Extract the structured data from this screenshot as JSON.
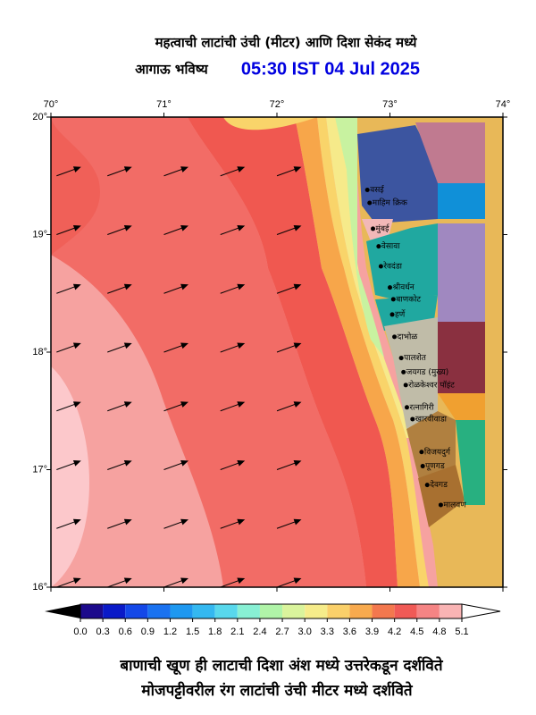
{
  "header": {
    "title": "महत्वाची लाटांची उंची (मीटर) आणि दिशा सेकंद मध्ये",
    "forecast_label": "आगाऊ भविष्य",
    "time": "05:30 IST 04 Jul 2025"
  },
  "map": {
    "xlim": [
      70,
      74
    ],
    "ylim": [
      16,
      20
    ],
    "xticks": [
      {
        "value": 70,
        "label": "70°"
      },
      {
        "value": 71,
        "label": "71°"
      },
      {
        "value": 72,
        "label": "72°"
      },
      {
        "value": 73,
        "label": "73°"
      },
      {
        "value": 74,
        "label": "74°"
      }
    ],
    "yticks": [
      {
        "value": 20,
        "label": "20°"
      },
      {
        "value": 19,
        "label": "19°"
      },
      {
        "value": 18,
        "label": "18°"
      },
      {
        "value": 17,
        "label": "17°"
      },
      {
        "value": 16,
        "label": "16°"
      }
    ],
    "arrows": {
      "lons": [
        70.05,
        70.5,
        71,
        71.5,
        72
      ],
      "lats": [
        19.5,
        19,
        18.5,
        18,
        17.5,
        17,
        16.5,
        16
      ],
      "direction": 250,
      "color": "#000000"
    },
    "places": [
      {
        "name": "वसई",
        "lon": 72.8,
        "lat": 19.38
      },
      {
        "name": "माहिम क्रिक",
        "lon": 72.82,
        "lat": 19.27
      },
      {
        "name": "मुंबई",
        "lon": 72.85,
        "lat": 19.05
      },
      {
        "name": "वेसावा",
        "lon": 72.9,
        "lat": 18.9
      },
      {
        "name": "रेवदंडा",
        "lon": 72.92,
        "lat": 18.73
      },
      {
        "name": "श्रीवर्धन",
        "lon": 73.0,
        "lat": 18.55
      },
      {
        "name": "बाणकोट",
        "lon": 73.03,
        "lat": 18.45
      },
      {
        "name": "हर्णे",
        "lon": 73.02,
        "lat": 18.32
      },
      {
        "name": "दाभोळ",
        "lon": 73.04,
        "lat": 18.13
      },
      {
        "name": "पालशेत",
        "lon": 73.1,
        "lat": 17.95
      },
      {
        "name": "जयगड (मुख्य)",
        "lon": 73.12,
        "lat": 17.83
      },
      {
        "name": "रोळकेश्वर पॉइंट",
        "lon": 73.14,
        "lat": 17.72
      },
      {
        "name": "रत्नागिरी",
        "lon": 73.15,
        "lat": 17.53
      },
      {
        "name": "खारवीवाडा",
        "lon": 73.2,
        "lat": 17.43
      },
      {
        "name": "विजयदुर्ग",
        "lon": 73.28,
        "lat": 17.15
      },
      {
        "name": "पूणगड",
        "lon": 73.29,
        "lat": 17.03
      },
      {
        "name": "देवगड",
        "lon": 73.33,
        "lat": 16.87
      },
      {
        "name": "मालवण",
        "lon": 73.45,
        "lat": 16.7
      }
    ]
  },
  "colorbar": {
    "ticks": [
      {
        "value": 0,
        "label": "0.0"
      },
      {
        "value": 0.3,
        "label": "0.3"
      },
      {
        "value": 0.6,
        "label": "0.6"
      },
      {
        "value": 0.9,
        "label": "0.9"
      },
      {
        "value": 1.2,
        "label": "1.2"
      },
      {
        "value": 1.5,
        "label": "1.5"
      },
      {
        "value": 1.8,
        "label": "1.8"
      },
      {
        "value": 2.1,
        "label": "2.1"
      },
      {
        "value": 2.4,
        "label": "2.4"
      },
      {
        "value": 2.7,
        "label": "2.7"
      },
      {
        "value": 3.0,
        "label": "3.0"
      },
      {
        "value": 3.3,
        "label": "3.3"
      },
      {
        "value": 3.6,
        "label": "3.6"
      },
      {
        "value": 3.9,
        "label": "3.9"
      },
      {
        "value": 4.2,
        "label": "4.2"
      },
      {
        "value": 4.5,
        "label": "4.5"
      },
      {
        "value": 4.8,
        "label": "4.8"
      },
      {
        "value": 5.1,
        "label": "5.1"
      }
    ],
    "colors": [
      "#1c0a8c",
      "#0a1ac8",
      "#1448e8",
      "#1a72f0",
      "#1e98f0",
      "#34b8f0",
      "#58d8ec",
      "#88f0d4",
      "#b0f4a8",
      "#daf49c",
      "#f6ec8a",
      "#fad06a",
      "#f8aa4e",
      "#f3784e",
      "#f05a56",
      "#f58484",
      "#f9b4b4"
    ]
  },
  "footer": {
    "line1": "बाणाची खूण ही लाटाची दिशा अंश मध्ये उत्तरेकडून दर्शविते",
    "line2": "मोजपट्टीवरील रंग लाटांची उंची मीटर मध्ये दर्शविते"
  }
}
